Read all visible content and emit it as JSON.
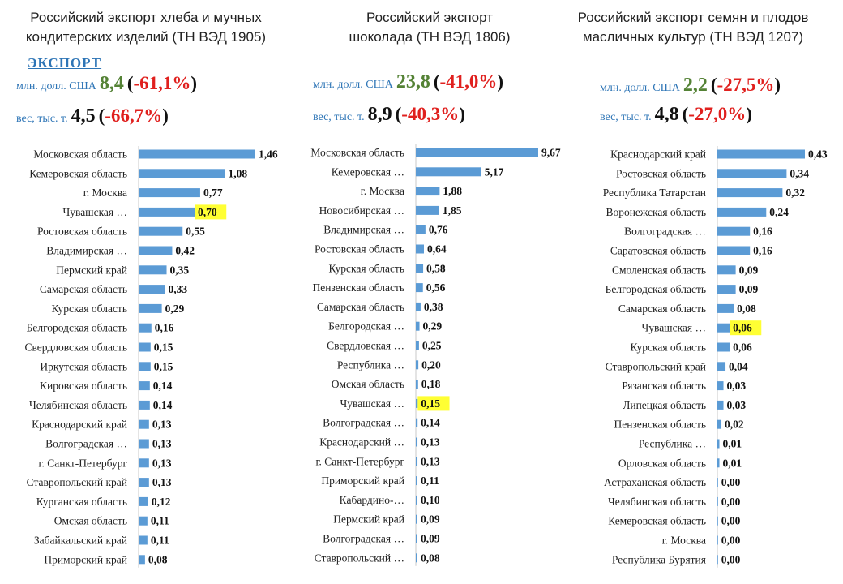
{
  "export_label": "ЭКСПОРТ",
  "colors": {
    "bar": "#5b9bd5",
    "highlight": "#ffff33",
    "positive": "#548235",
    "negative": "#e0201e",
    "unit": "#2e75b6"
  },
  "chart_data": [
    {
      "type": "bar",
      "orientation": "horizontal",
      "title": "Российский экспорт хлеба и мучных\nкондитерских изделий (ТН ВЭД 1905)",
      "stats": {
        "usd_label": "млн. долл. США",
        "usd_value": "8,4",
        "usd_change": "-61,1%",
        "weight_label": "вес, тыс. т.",
        "weight_value": "4,5",
        "weight_change": "-66,7%"
      },
      "highlight": "Чувашская …",
      "categories": [
        "Московская область",
        "Кемеровская область",
        "г. Москва",
        "Чувашская …",
        "Ростовская область",
        "Владимирская …",
        "Пермский край",
        "Самарская область",
        "Курская область",
        "Белгородская область",
        "Свердловская область",
        "Иркутская область",
        "Кировская область",
        "Челябинская область",
        "Краснодарский край",
        "Волгоградская …",
        "г. Санкт-Петербург",
        "Ставропольский край",
        "Курганская область",
        "Омская область",
        "Забайкальский край",
        "Приморский край"
      ],
      "values": [
        1.46,
        1.08,
        0.77,
        0.7,
        0.55,
        0.42,
        0.35,
        0.33,
        0.29,
        0.16,
        0.15,
        0.15,
        0.14,
        0.14,
        0.13,
        0.13,
        0.13,
        0.13,
        0.12,
        0.11,
        0.11,
        0.08
      ],
      "labels": [
        "1,46",
        "1,08",
        "0,77",
        "0,70",
        "0,55",
        "0,42",
        "0,35",
        "0,33",
        "0,29",
        "0,16",
        "0,15",
        "0,15",
        "0,14",
        "0,14",
        "0,13",
        "0,13",
        "0,13",
        "0,13",
        "0,12",
        "0,11",
        "0,11",
        "0,08"
      ]
    },
    {
      "type": "bar",
      "orientation": "horizontal",
      "title": "Российский экспорт\nшоколада (ТН ВЭД 1806)",
      "stats": {
        "usd_label": "млн. долл. США",
        "usd_value": "23,8",
        "usd_change": "-41,0%",
        "weight_label": "вес, тыс. т.",
        "weight_value": "8,9",
        "weight_change": "-40,3%"
      },
      "highlight": "Чувашская …",
      "categories": [
        "Московская область",
        "Кемеровская …",
        "г. Москва",
        "Новосибирская …",
        "Владимирская …",
        "Ростовская область",
        "Курская область",
        "Пензенская область",
        "Самарская область",
        "Белгородская …",
        "Свердловская …",
        "Республика …",
        "Омская область",
        "Чувашская …",
        "Волгоградская …",
        "Краснодарский …",
        "г. Санкт-Петербург",
        "Приморский край",
        "Кабардино-…",
        "Пермский край",
        "Волгоградская …",
        "Ставропольский …"
      ],
      "values": [
        9.67,
        5.17,
        1.88,
        1.85,
        0.76,
        0.64,
        0.58,
        0.56,
        0.38,
        0.29,
        0.25,
        0.2,
        0.18,
        0.15,
        0.14,
        0.13,
        0.13,
        0.11,
        0.1,
        0.09,
        0.09,
        0.08
      ],
      "labels": [
        "9,67",
        "5,17",
        "1,88",
        "1,85",
        "0,76",
        "0,64",
        "0,58",
        "0,56",
        "0,38",
        "0,29",
        "0,25",
        "0,20",
        "0,18",
        "0,15",
        "0,14",
        "0,13",
        "0,13",
        "0,11",
        "0,10",
        "0,09",
        "0,09",
        "0,08"
      ]
    },
    {
      "type": "bar",
      "orientation": "horizontal",
      "title": "Российский экспорт семян и плодов\nмасличных культур (ТН ВЭД 1207)",
      "stats": {
        "usd_label": "млн. долл. США",
        "usd_value": "2,2",
        "usd_change": "-27,5%",
        "weight_label": "вес, тыс. т.",
        "weight_value": "4,8",
        "weight_change": "-27,0%"
      },
      "highlight": "Чувашская …",
      "categories": [
        "Краснодарский край",
        "Ростовская область",
        "Республика Татарстан",
        "Воронежская область",
        "Волгоградская …",
        "Саратовская область",
        "Смоленская область",
        "Белгородская область",
        "Самарская область",
        "Чувашская …",
        "Курская область",
        "Ставропольский край",
        "Рязанская область",
        "Липецкая область",
        "Пензенская область",
        "Республика …",
        "Орловская область",
        "Астраханская область",
        "Челябинская область",
        "Кемеровская область",
        "г. Москва",
        "Республика Бурятия"
      ],
      "values": [
        0.43,
        0.34,
        0.32,
        0.24,
        0.16,
        0.16,
        0.09,
        0.09,
        0.08,
        0.06,
        0.06,
        0.04,
        0.03,
        0.03,
        0.02,
        0.01,
        0.01,
        0.0,
        0.0,
        0.0,
        0.0,
        0.0
      ],
      "labels": [
        "0,43",
        "0,34",
        "0,32",
        "0,24",
        "0,16",
        "0,16",
        "0,09",
        "0,09",
        "0,08",
        "0,06",
        "0,06",
        "0,04",
        "0,03",
        "0,03",
        "0,02",
        "0,01",
        "0,01",
        "0,00",
        "0,00",
        "0,00",
        "0,00",
        "0,00"
      ]
    }
  ]
}
